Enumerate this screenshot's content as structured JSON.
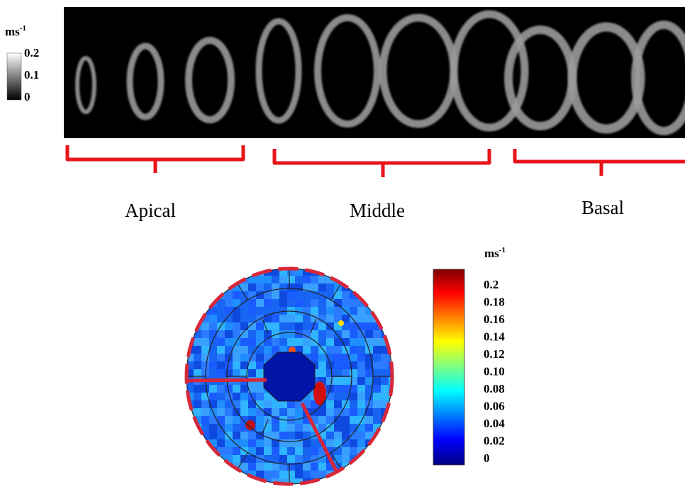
{
  "gray_scale": {
    "unit": {
      "base": "ms",
      "sup": "-1"
    },
    "ticks": [
      "0.2",
      "0.1",
      "0"
    ]
  },
  "sections": [
    "Apical",
    "Middle",
    "Basal"
  ],
  "color_scale": {
    "unit": {
      "base": "ms",
      "sup": "-1"
    },
    "ticks": [
      "0.2",
      "0.18",
      "0.16",
      "0.14",
      "0.12",
      "0.10",
      "0.08",
      "0.06",
      "0.04",
      "0.02",
      "0"
    ]
  }
}
